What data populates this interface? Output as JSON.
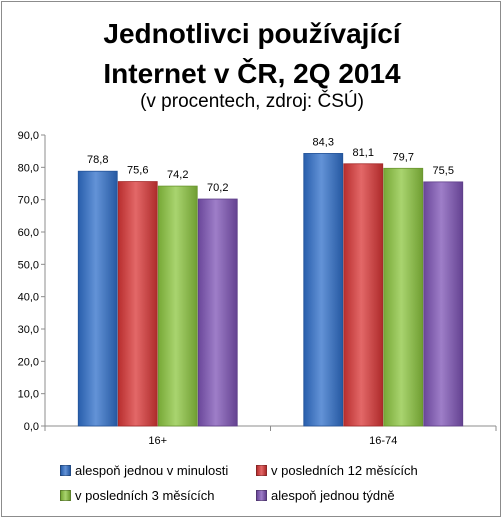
{
  "chart_data": {
    "type": "bar",
    "title_lines": [
      "Jednotlivci používající",
      "Internet v ČR, 2Q 2014"
    ],
    "subtitle": "(v procentech, zdroj: ČSÚ)",
    "categories": [
      "16+",
      "16-74"
    ],
    "series": [
      {
        "name": "alespoň jednou v minulosti",
        "color": "#2f6fca",
        "values": [
          78.8,
          84.3
        ]
      },
      {
        "name": "v posledních 12 měsících",
        "color": "#d93636",
        "values": [
          75.6,
          81.1
        ]
      },
      {
        "name": "v posledních 3 měsících",
        "color": "#8cc63f",
        "values": [
          74.2,
          79.7
        ]
      },
      {
        "name": "alespoň jednou týdně",
        "color": "#7d53b5",
        "values": [
          70.2,
          75.5
        ]
      }
    ],
    "value_labels": [
      [
        "78,8",
        "84,3"
      ],
      [
        "75,6",
        "81,1"
      ],
      [
        "74,2",
        "79,7"
      ],
      [
        "70,2",
        "75,5"
      ]
    ],
    "ylim": [
      0,
      90
    ],
    "y_ticks": [
      "0,0",
      "10,0",
      "20,0",
      "30,0",
      "40,0",
      "50,0",
      "60,0",
      "70,0",
      "80,0",
      "90,0"
    ],
    "grid": false,
    "legend_position": "bottom"
  }
}
